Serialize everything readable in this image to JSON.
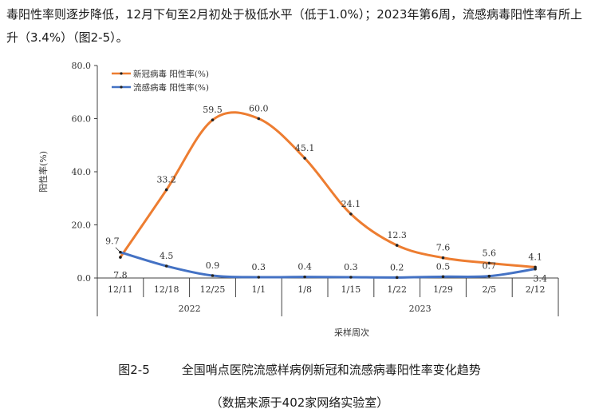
{
  "intro_text": "毒阳性率则逐步降低，12月下旬至2月初处于极低水平（低于1.0%）；2023年第6周，流感病毒阳性率有所上升（3.4%）（图2-5）。",
  "figure_number": "图2-5",
  "figure_title": "全国哨点医院流感样病例新冠和流感病毒阳性率变化趋势",
  "source_note": "（数据来源于402家网络实验室）",
  "colors": {
    "covid": "#ED7D31",
    "flu": "#4472C4",
    "axis": "#404040"
  },
  "chart_data": {
    "type": "line",
    "title": "",
    "xlabel": "采样周次",
    "ylabel": "阳性率(%)",
    "ylim": [
      0,
      80
    ],
    "yticks": [
      "0.0",
      "20.0",
      "40.0",
      "60.0",
      "80.0"
    ],
    "categories": [
      "12/11",
      "12/18",
      "12/25",
      "1/1",
      "1/8",
      "1/15",
      "1/22",
      "1/29",
      "2/5",
      "2/12"
    ],
    "year_groups": [
      {
        "label": "2022",
        "span": [
          0,
          3
        ]
      },
      {
        "label": "2023",
        "span": [
          4,
          9
        ]
      }
    ],
    "grid": false,
    "legend": "top-left",
    "series": [
      {
        "name": "新冠病毒 阳性率(%)",
        "color": "#ED7D31",
        "values": [
          7.8,
          33.2,
          59.5,
          60.0,
          45.1,
          24.1,
          12.3,
          7.6,
          5.6,
          4.1
        ],
        "labels": [
          "7.8",
          "33.2",
          "59.5",
          "60.0",
          "45.1",
          "24.1",
          "12.3",
          "7.6",
          "5.6",
          "4.1"
        ]
      },
      {
        "name": "流感病毒 阳性率(%)",
        "color": "#4472C4",
        "values": [
          9.7,
          4.5,
          0.9,
          0.3,
          0.4,
          0.3,
          0.2,
          0.5,
          0.7,
          3.4
        ],
        "labels": [
          "9.7",
          "4.5",
          "0.9",
          "0.3",
          "0.4",
          "0.3",
          "0.2",
          "0.5",
          "0.7",
          "3.4"
        ]
      }
    ]
  }
}
